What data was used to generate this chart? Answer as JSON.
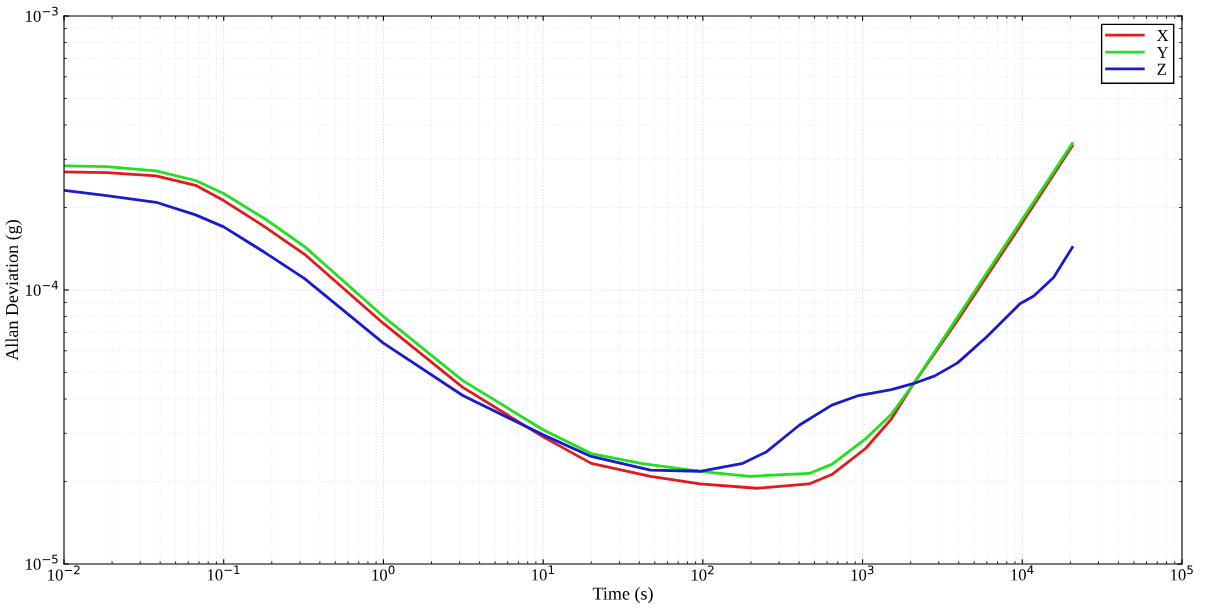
{
  "chart_data": {
    "type": "line",
    "xlabel": "Time (s)",
    "ylabel": "Allan Deviation (g)",
    "log": "xy",
    "grid": true,
    "legend": "top right",
    "xlim": [
      0.01,
      100000
    ],
    "ylim": [
      1e-05,
      0.001
    ],
    "xticks": [
      {
        "value": 0.01,
        "label": "10$^{−2}$"
      },
      {
        "value": 0.1,
        "label": "10$^{−1}$"
      },
      {
        "value": 1,
        "label": "10$^{0}$"
      },
      {
        "value": 10,
        "label": "10$^{1}$"
      },
      {
        "value": 100,
        "label": "10$^{2}$"
      },
      {
        "value": 1000,
        "label": "10$^{3}$"
      },
      {
        "value": 10000,
        "label": "10$^{4}$"
      },
      {
        "value": 100000,
        "label": "10$^{5}$"
      }
    ],
    "yticks": [
      {
        "value": 1e-05,
        "label": "10$^{−5}$"
      },
      {
        "value": 0.0001,
        "label": "10$^{−4}$"
      },
      {
        "value": 0.001,
        "label": "10$^{−3}$"
      }
    ],
    "series": [
      {
        "name": "X",
        "color": "#e31a1c",
        "x": [
          0.01,
          0.0185,
          0.0377,
          0.0667,
          0.1,
          0.181,
          0.321,
          1,
          3.14,
          10,
          20,
          47,
          96,
          217,
          462,
          642,
          1044,
          1514,
          2070,
          3936,
          9670,
          20560
        ],
        "values": [
          0.00027,
          0.000268,
          0.000261,
          0.000241,
          0.000212,
          0.00017,
          0.000135,
          7.55e-05,
          4.41e-05,
          2.91e-05,
          2.33e-05,
          2.09e-05,
          1.96e-05,
          1.89e-05,
          1.96e-05,
          2.12e-05,
          2.64e-05,
          3.38e-05,
          4.52e-05,
          7.75e-05,
          0.000171,
          0.000336
        ]
      },
      {
        "name": "Y",
        "color": "#22e01e",
        "x": [
          0.01,
          0.0185,
          0.0377,
          0.0667,
          0.1,
          0.181,
          0.321,
          1,
          3.14,
          10,
          20,
          41,
          96,
          197,
          462,
          642,
          1044,
          1514,
          2070,
          3936,
          9670,
          20560
        ],
        "values": [
          0.000284,
          0.000282,
          0.000272,
          0.000251,
          0.000225,
          0.000182,
          0.000144,
          8e-05,
          4.67e-05,
          3.09e-05,
          2.53e-05,
          2.33e-05,
          2.18e-05,
          2.09e-05,
          2.14e-05,
          2.31e-05,
          2.86e-05,
          3.52e-05,
          4.52e-05,
          7.97e-05,
          0.000176,
          0.000343
        ]
      },
      {
        "name": "Z",
        "color": "#1a1ad0",
        "x": [
          0.01,
          0.0185,
          0.0377,
          0.0667,
          0.1,
          0.181,
          0.321,
          1,
          3.14,
          10,
          20,
          47,
          96,
          178,
          251,
          401,
          642,
          944,
          1514,
          2070,
          2834,
          3936,
          6040,
          9670,
          11800,
          15700,
          20560
        ],
        "values": [
          0.000231,
          0.000221,
          0.000209,
          0.000188,
          0.00017,
          0.000137,
          0.00011,
          6.4e-05,
          4.12e-05,
          2.96e-05,
          2.47e-05,
          2.2e-05,
          2.18e-05,
          2.33e-05,
          2.57e-05,
          3.21e-05,
          3.8e-05,
          4.12e-05,
          4.33e-05,
          4.55e-05,
          4.86e-05,
          5.42e-05,
          6.78e-05,
          8.91e-05,
          9.51e-05,
          0.000111,
          0.000143
        ]
      }
    ]
  }
}
